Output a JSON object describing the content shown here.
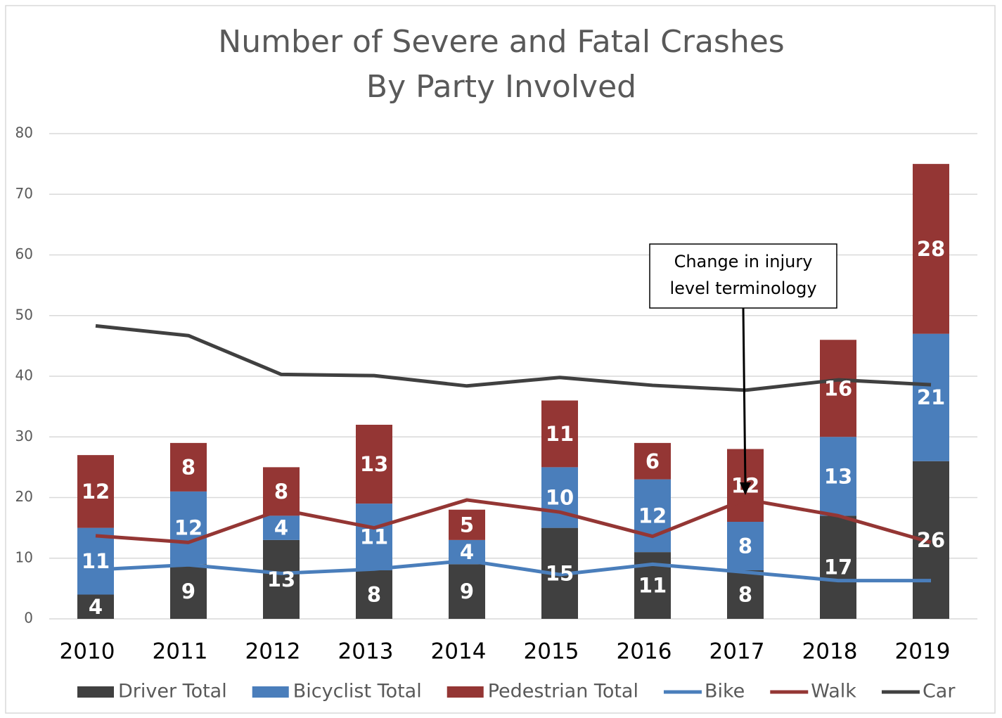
{
  "chart_data": {
    "type": "bar",
    "stacked": true,
    "title": "Number of Severe and Fatal Crashes",
    "subtitle": "By Party Involved",
    "categories": [
      "2010",
      "2011",
      "2012",
      "2013",
      "2014",
      "2015",
      "2016",
      "2017",
      "2018",
      "2019"
    ],
    "series": [
      {
        "name": "Driver Total",
        "type": "bar",
        "color": "#404040",
        "values": [
          4,
          9,
          13,
          8,
          9,
          15,
          11,
          8,
          17,
          26
        ]
      },
      {
        "name": "Bicyclist Total",
        "type": "bar",
        "color": "#4a7ebb",
        "values": [
          11,
          12,
          4,
          11,
          4,
          10,
          12,
          8,
          13,
          21
        ]
      },
      {
        "name": "Pedestrian Total",
        "type": "bar",
        "color": "#943634",
        "values": [
          12,
          8,
          8,
          13,
          5,
          11,
          6,
          12,
          16,
          28
        ]
      },
      {
        "name": "Bike",
        "type": "line",
        "color": "#4a7ebb",
        "values": [
          8.1,
          8.9,
          7.5,
          8.2,
          9.6,
          7.3,
          9.0,
          7.7,
          6.3,
          6.3
        ]
      },
      {
        "name": "Walk",
        "type": "line",
        "color": "#943634",
        "values": [
          13.7,
          12.6,
          18.0,
          15.0,
          19.6,
          17.6,
          13.6,
          19.7,
          17.0,
          12.6
        ]
      },
      {
        "name": "Car",
        "type": "line",
        "color": "#404040",
        "values": [
          48.3,
          46.7,
          40.3,
          40.1,
          38.4,
          39.8,
          38.5,
          37.7,
          39.4,
          38.6
        ]
      }
    ],
    "ylim": [
      0,
      80
    ],
    "yticks": [
      0,
      10,
      20,
      30,
      40,
      50,
      60,
      70,
      80
    ],
    "grid": true,
    "legend": "bottom",
    "annotation": {
      "lines": [
        "Change in injury",
        "level terminology"
      ],
      "category": "2017"
    }
  }
}
